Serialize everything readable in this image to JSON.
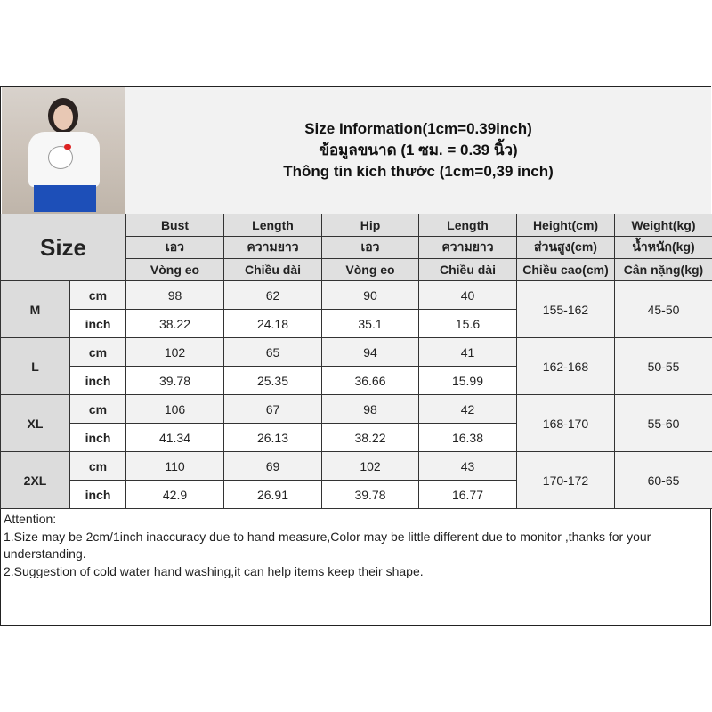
{
  "title": {
    "line1": "Size Information(1cm=0.39inch)",
    "line2": "ข้อมูลขนาด (1 ซม. = 0.39 นิ้ว)",
    "line3": "Thông tin kích thước (1cm=0,39 inch)"
  },
  "size_label": "Size",
  "headers": [
    [
      "Bust",
      "Length",
      "Hip",
      "Length",
      "Height(cm)",
      "Weight(kg)"
    ],
    [
      "เอว",
      "ความยาว",
      "เอว",
      "ความยาว",
      "ส่วนสูง(cm)",
      "น้ำหนัก(kg)"
    ],
    [
      "Vòng eo",
      "Chiều dài",
      "Vòng eo",
      "Chiều dài",
      "Chiều cao(cm)",
      "Cân nặng(kg)"
    ]
  ],
  "units": {
    "cm": "cm",
    "inch": "inch"
  },
  "rows": [
    {
      "size": "M",
      "cm": [
        "98",
        "62",
        "90",
        "40"
      ],
      "inch": [
        "38.22",
        "24.18",
        "35.1",
        "15.6"
      ],
      "height": "155-162",
      "weight": "45-50"
    },
    {
      "size": "L",
      "cm": [
        "102",
        "65",
        "94",
        "41"
      ],
      "inch": [
        "39.78",
        "25.35",
        "36.66",
        "15.99"
      ],
      "height": "162-168",
      "weight": "50-55"
    },
    {
      "size": "XL",
      "cm": [
        "106",
        "67",
        "98",
        "42"
      ],
      "inch": [
        "41.34",
        "26.13",
        "38.22",
        "16.38"
      ],
      "height": "168-170",
      "weight": "55-60"
    },
    {
      "size": "2XL",
      "cm": [
        "110",
        "69",
        "102",
        "43"
      ],
      "inch": [
        "42.9",
        "26.91",
        "39.78",
        "16.77"
      ],
      "height": "170-172",
      "weight": "60-65"
    }
  ],
  "notes": {
    "heading": "Attention:",
    "line1": "1.Size may be 2cm/1inch inaccuracy due to hand measure,Color may be little different due to monitor ,thanks for your understanding.",
    "line2": "2.Suggestion of cold water hand washing,it can help items keep their shape."
  }
}
